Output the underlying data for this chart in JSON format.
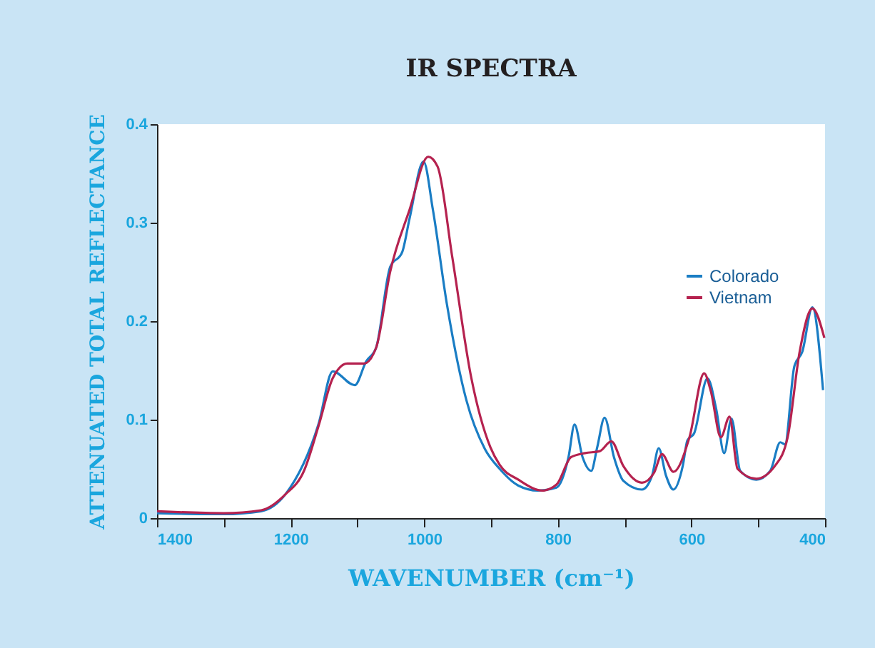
{
  "chart_data": {
    "type": "line",
    "title": "IR SPECTRA",
    "xlabel": "WAVENUMBER (cm⁻¹)",
    "ylabel": "ATTENUATED TOTAL REFLECTANCE",
    "xlim": [
      1400,
      400
    ],
    "ylim": [
      0,
      0.4
    ],
    "xticks": [
      1400,
      {
        "value": 1300,
        "label": null
      },
      1200,
      {
        "value": 1100,
        "label": null
      },
      1000,
      {
        "value": 900,
        "label": null
      },
      800,
      {
        "value": 700,
        "label": null
      },
      600,
      {
        "value": 500,
        "label": null
      },
      400
    ],
    "yticks": [
      0,
      0.1,
      0.2,
      0.3,
      0.4
    ],
    "grid": false,
    "legend": "right",
    "marker": "none",
    "line_style": "solid",
    "series": [
      {
        "name": "Colorado",
        "color": "#1a7dc4",
        "x": [
          1400,
          1300,
          1244,
          1208,
          1158,
          1137,
          1104,
          1087,
          1072,
          1051,
          1033,
          1022,
          1001,
          987,
          966,
          937,
          909,
          887,
          859,
          830,
          802,
          784,
          775,
          763,
          750,
          741,
          730,
          716,
          702,
          674,
          659,
          649,
          638,
          627,
          613,
          606,
          596,
          576,
          563,
          551,
          540,
          527,
          503,
          482,
          467,
          460,
          446,
          434,
          419,
          403
        ],
        "values": [
          0.005,
          0.004,
          0.007,
          0.024,
          0.096,
          0.149,
          0.135,
          0.159,
          0.173,
          0.255,
          0.27,
          0.304,
          0.362,
          0.313,
          0.217,
          0.12,
          0.07,
          0.05,
          0.033,
          0.028,
          0.031,
          0.062,
          0.095,
          0.062,
          0.048,
          0.072,
          0.102,
          0.062,
          0.038,
          0.029,
          0.043,
          0.071,
          0.043,
          0.029,
          0.053,
          0.079,
          0.086,
          0.142,
          0.111,
          0.066,
          0.101,
          0.048,
          0.039,
          0.048,
          0.077,
          0.075,
          0.154,
          0.169,
          0.214,
          0.13
        ]
      },
      {
        "name": "Vietnam",
        "color": "#b5224f",
        "x": [
          1400,
          1300,
          1244,
          1208,
          1180,
          1158,
          1137,
          1115,
          1090,
          1072,
          1051,
          1022,
          994,
          980,
          958,
          930,
          901,
          887,
          859,
          823,
          802,
          780,
          759,
          737,
          720,
          702,
          674,
          656,
          644,
          627,
          603,
          581,
          571,
          556,
          543,
          531,
          503,
          475,
          456,
          438,
          419,
          401
        ],
        "values": [
          0.007,
          0.005,
          0.008,
          0.024,
          0.048,
          0.094,
          0.142,
          0.157,
          0.157,
          0.173,
          0.25,
          0.313,
          0.367,
          0.357,
          0.265,
          0.144,
          0.072,
          0.054,
          0.039,
          0.028,
          0.034,
          0.062,
          0.066,
          0.068,
          0.078,
          0.053,
          0.036,
          0.046,
          0.065,
          0.047,
          0.082,
          0.147,
          0.129,
          0.082,
          0.103,
          0.05,
          0.04,
          0.053,
          0.082,
          0.169,
          0.213,
          0.183
        ]
      }
    ]
  }
}
